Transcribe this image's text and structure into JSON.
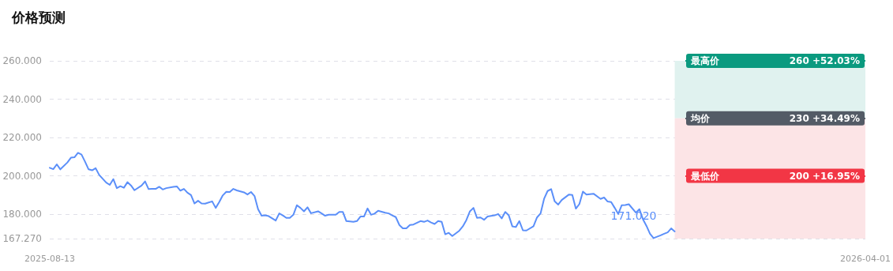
{
  "chart_data": {
    "type": "line",
    "title": "价格预测",
    "x": [
      "2025-08-13",
      "2025-08-14",
      "2025-08-15",
      "2025-08-16",
      "2025-08-18",
      "2025-08-19",
      "2025-08-20",
      "2025-08-21",
      "2025-08-22",
      "2025-08-23",
      "2025-08-24",
      "2025-08-25",
      "2025-08-26",
      "2025-08-27",
      "2025-08-29",
      "2025-08-30",
      "2025-08-31",
      "2025-09-01",
      "2025-09-02",
      "2025-09-03",
      "2025-09-04",
      "2025-09-05",
      "2025-09-06",
      "2025-09-08",
      "2025-09-09",
      "2025-09-10",
      "2025-09-11",
      "2025-09-12",
      "2025-09-13",
      "2025-09-14",
      "2025-09-15",
      "2025-09-17",
      "2025-09-18",
      "2025-09-19",
      "2025-09-20",
      "2025-09-21",
      "2025-09-22",
      "2025-09-23",
      "2025-09-24",
      "2025-09-25",
      "2025-09-26",
      "2025-09-28",
      "2025-09-29",
      "2025-09-30",
      "2025-10-01",
      "2025-10-02",
      "2025-10-03",
      "2025-10-04",
      "2025-10-05",
      "2025-10-07",
      "2025-10-08",
      "2025-10-09",
      "2025-10-10",
      "2025-10-11",
      "2025-10-12",
      "2025-10-13",
      "2025-10-14",
      "2025-10-16",
      "2025-10-17",
      "2025-10-18",
      "2025-10-19",
      "2025-10-20",
      "2025-10-21",
      "2025-10-22",
      "2025-10-23",
      "2025-10-24",
      "2025-10-25",
      "2025-10-26",
      "2025-10-28",
      "2025-10-29",
      "2025-10-30",
      "2025-10-31",
      "2025-11-01",
      "2025-11-02",
      "2025-11-03",
      "2025-11-04",
      "2025-11-05",
      "2025-11-07",
      "2025-11-08",
      "2025-11-09",
      "2025-11-10",
      "2025-11-11",
      "2025-11-12",
      "2025-11-13",
      "2025-11-14",
      "2025-11-16",
      "2025-11-17",
      "2025-11-18",
      "2025-11-19",
      "2025-11-20",
      "2025-11-21",
      "2025-11-22",
      "2025-11-23",
      "2025-11-24",
      "2025-11-26",
      "2025-11-27",
      "2025-11-28",
      "2025-11-29",
      "2025-11-30",
      "2025-12-01",
      "2025-12-02",
      "2025-12-03",
      "2025-12-04",
      "2025-12-05",
      "2025-12-07",
      "2025-12-08",
      "2025-12-09",
      "2025-12-10",
      "2025-12-11",
      "2025-12-12",
      "2025-12-13",
      "2025-12-14",
      "2025-12-15",
      "2025-12-17",
      "2025-12-18",
      "2025-12-19",
      "2025-12-20",
      "2025-12-21",
      "2025-12-22",
      "2025-12-23",
      "2025-12-24",
      "2025-12-25",
      "2025-12-26",
      "2025-12-28",
      "2025-12-29",
      "2025-12-30",
      "2025-12-31",
      "2026-01-01",
      "2026-01-02",
      "2026-01-03",
      "2026-01-04",
      "2026-01-05",
      "2026-01-07",
      "2026-01-08",
      "2026-01-09",
      "2026-01-10",
      "2026-01-11",
      "2026-01-12",
      "2026-01-14",
      "2026-01-16",
      "2026-01-17",
      "2026-01-18",
      "2026-01-19",
      "2026-01-20",
      "2026-01-21",
      "2026-01-22",
      "2026-01-23",
      "2026-01-24",
      "2026-01-26",
      "2026-01-27",
      "2026-01-28",
      "2026-01-29",
      "2026-01-30",
      "2026-01-31",
      "2026-02-02",
      "2026-02-03",
      "2026-02-04",
      "2026-02-05",
      "2026-02-06"
    ],
    "values": [
      204.2,
      203.5,
      206,
      203.4,
      207,
      209.5,
      209.7,
      212,
      211.1,
      207.4,
      203.4,
      202.9,
      204,
      200.5,
      196.5,
      195.3,
      198.3,
      193.6,
      194.6,
      193.8,
      196.7,
      195,
      192.5,
      194.9,
      197.1,
      193.1,
      193.2,
      193.2,
      194.3,
      192.9,
      193.6,
      194.3,
      194.5,
      192.3,
      193.2,
      191.2,
      190,
      185.6,
      187,
      185.6,
      185.5,
      186.7,
      183.3,
      186.3,
      189.8,
      191.7,
      191.6,
      193.2,
      192.4,
      191.4,
      190.3,
      191.6,
      189.5,
      182.6,
      179.2,
      179.4,
      179,
      176.7,
      180.4,
      179.4,
      178.1,
      178.1,
      179.7,
      184.7,
      183.3,
      181.5,
      183.6,
      180.5,
      181.5,
      180.4,
      179.2,
      179.7,
      179.7,
      179.7,
      181.2,
      181.2,
      176.4,
      176,
      176.4,
      178.8,
      178.8,
      183,
      179.7,
      180.3,
      181.8,
      180.8,
      180.4,
      179.4,
      178.5,
      174.4,
      172.6,
      172.6,
      174.4,
      174.6,
      176.4,
      176,
      176.7,
      175.7,
      174.9,
      176.4,
      176,
      169.5,
      170.3,
      168.6,
      171.4,
      173.7,
      177,
      181.5,
      183.3,
      178.1,
      178.3,
      177.1,
      178.8,
      179.4,
      180.1,
      177.8,
      181.2,
      179.4,
      173.7,
      173.3,
      176.4,
      171.6,
      171.5,
      173.7,
      178.3,
      180.4,
      188,
      192.1,
      193.1,
      186.7,
      185,
      187.4,
      190.2,
      190,
      182.9,
      185.3,
      191.8,
      190.2,
      190.7,
      188,
      188.7,
      186.6,
      186.3,
      183.3,
      180.1,
      184.7,
      184.8,
      185.2,
      180.8,
      182.6,
      177.4,
      173.9,
      169.8,
      167.5,
      169,
      169.8,
      170.5,
      172.6,
      171.02
    ],
    "color": "#5b8ff9",
    "marker": "none",
    "line_style": "solid",
    "grid": "y",
    "xlim": [
      "2025-08-13",
      "2026-04-01"
    ],
    "xticks": [
      "2025-08-13",
      "2026-04-01"
    ],
    "ylim": [
      167.27,
      260
    ],
    "yticks": [
      {
        "value": 167.27,
        "label": "167.270"
      },
      {
        "value": 180,
        "label": "180.000"
      },
      {
        "value": 200,
        "label": "200.000"
      },
      {
        "value": 220,
        "label": "220.000"
      },
      {
        "value": 240,
        "label": "240.000"
      },
      {
        "value": 260,
        "label": "260.000"
      }
    ],
    "bands": [
      {
        "axis": "y",
        "from": 230,
        "to": 260,
        "color": "#e0f2ef"
      },
      {
        "axis": "y",
        "from": 167.27,
        "to": 230,
        "color": "#fce4e6"
      }
    ],
    "ref_lines": [
      {
        "axis": "y",
        "value": 260,
        "label": "最高价 260 +52.03%",
        "color": "#0a9a7f"
      },
      {
        "axis": "y",
        "value": 230,
        "label": "均价 230 +34.49%",
        "color": "#535b66"
      },
      {
        "axis": "y",
        "value": 200,
        "label": "最低价 200 +16.95%",
        "color": "#f23645"
      }
    ],
    "annotations": [
      {
        "text": "171.020",
        "x": "2026-02-06",
        "y": 171.02
      }
    ]
  }
}
